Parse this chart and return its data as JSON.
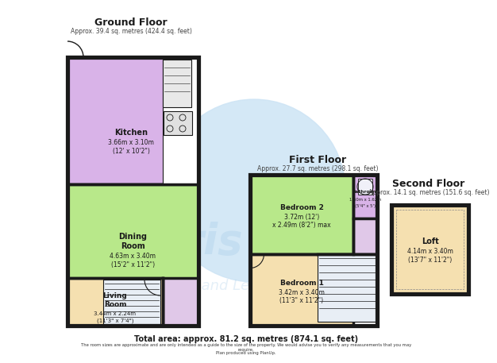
{
  "bg_color": "#ffffff",
  "watermark_color": "#cde4f5",
  "wall_color": "#1a1a1a",
  "wall_lw": 2.5,
  "ground_floor_title": "Ground Floor",
  "ground_floor_sub": "Approx. 39.4 sq. metres (424.4 sq. feet)",
  "first_floor_title": "First Floor",
  "first_floor_sub": "Approx. 27.7 sq. metres (298.1 sq. feet)",
  "second_floor_title": "Second Floor",
  "second_floor_sub": "Approx. 14.1 sq. metres (151.6 sq. feet)",
  "kitchen_color": "#d9b3e8",
  "dining_color": "#b8e88a",
  "living_color": "#f5e0b0",
  "bedroom2_color": "#b8e88a",
  "bathroom_color": "#d9b3e8",
  "bedroom1_color": "#f5e0b0",
  "loft_color": "#f5e0b0",
  "landing_color": "#e0c8e8",
  "stair_color": "#c8dff0",
  "footer_bold": "Total area: approx. 81.2 sq. metres (874.1 sq. feet)",
  "footer_small": "The room sizes are approximate and are only intended as a guide to the size of the property. We would advise you to verify any measurements that you may\nrequire.\nPlan produced using PlanUp."
}
